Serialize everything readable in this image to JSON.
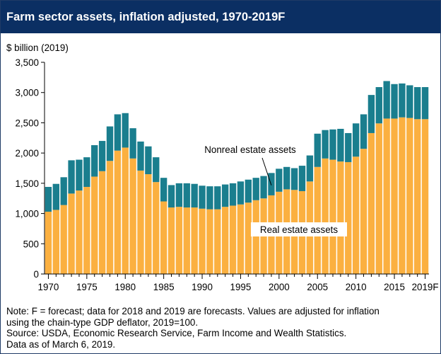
{
  "header": {
    "title": "Farm sector assets, inflation adjusted, 1970-2019F"
  },
  "colors": {
    "header_bg": "#0b2f63",
    "real_estate": "#fbb040",
    "nonreal_estate": "#1a7e8e"
  },
  "chart_data": {
    "type": "bar",
    "stacked": true,
    "unit_label": "$ billion (2019)",
    "categories": [
      "1970",
      "1971",
      "1972",
      "1973",
      "1974",
      "1975",
      "1976",
      "1977",
      "1978",
      "1979",
      "1980",
      "1981",
      "1982",
      "1983",
      "1984",
      "1985",
      "1986",
      "1987",
      "1988",
      "1989",
      "1990",
      "1991",
      "1992",
      "1993",
      "1994",
      "1995",
      "1996",
      "1997",
      "1998",
      "1999",
      "2000",
      "2001",
      "2002",
      "2003",
      "2004",
      "2005",
      "2006",
      "2007",
      "2008",
      "2009",
      "2010",
      "2011",
      "2012",
      "2013",
      "2014",
      "2015",
      "2016",
      "2017",
      "2018",
      "2019F"
    ],
    "x_tick_labels": [
      "1970",
      "1975",
      "1980",
      "1985",
      "1990",
      "1995",
      "2000",
      "2005",
      "2010",
      "2015",
      "2019F"
    ],
    "series": [
      {
        "name": "Real estate assets",
        "values": [
          1030,
          1060,
          1140,
          1330,
          1380,
          1440,
          1610,
          1700,
          1870,
          2040,
          2090,
          1910,
          1710,
          1650,
          1520,
          1200,
          1100,
          1110,
          1100,
          1100,
          1080,
          1070,
          1070,
          1110,
          1130,
          1150,
          1180,
          1220,
          1250,
          1300,
          1360,
          1400,
          1390,
          1370,
          1530,
          1770,
          1910,
          1890,
          1860,
          1850,
          1940,
          2070,
          2330,
          2490,
          2570,
          2570,
          2590,
          2580,
          2560,
          2560
        ]
      },
      {
        "name": "Nonreal estate assets",
        "values": [
          410,
          430,
          460,
          550,
          510,
          490,
          520,
          500,
          570,
          600,
          570,
          500,
          480,
          460,
          410,
          390,
          370,
          390,
          400,
          390,
          380,
          380,
          380,
          370,
          370,
          380,
          380,
          370,
          370,
          370,
          380,
          370,
          360,
          420,
          430,
          550,
          470,
          500,
          540,
          480,
          550,
          570,
          630,
          600,
          620,
          570,
          560,
          540,
          530,
          530
        ]
      }
    ],
    "annotations": [
      "Nonreal estate assets",
      "Real estate assets"
    ],
    "ylim": [
      0,
      3500
    ],
    "yticks": [
      "0",
      "500",
      "1,000",
      "1,500",
      "2,000",
      "2,500",
      "3,000",
      "3,500"
    ],
    "grid": false,
    "legend": "none (series labelled inside the plot)"
  },
  "notes": {
    "line1": "Note: F = forecast; data for 2018 and 2019 are forecasts. Values are adjusted for inflation",
    "line2": "using the chain-type GDP deflator, 2019=100.",
    "line3": "Source: USDA, Economic Research Service, Farm Income and Wealth Statistics.",
    "line4": "Data as of March 6, 2019."
  }
}
